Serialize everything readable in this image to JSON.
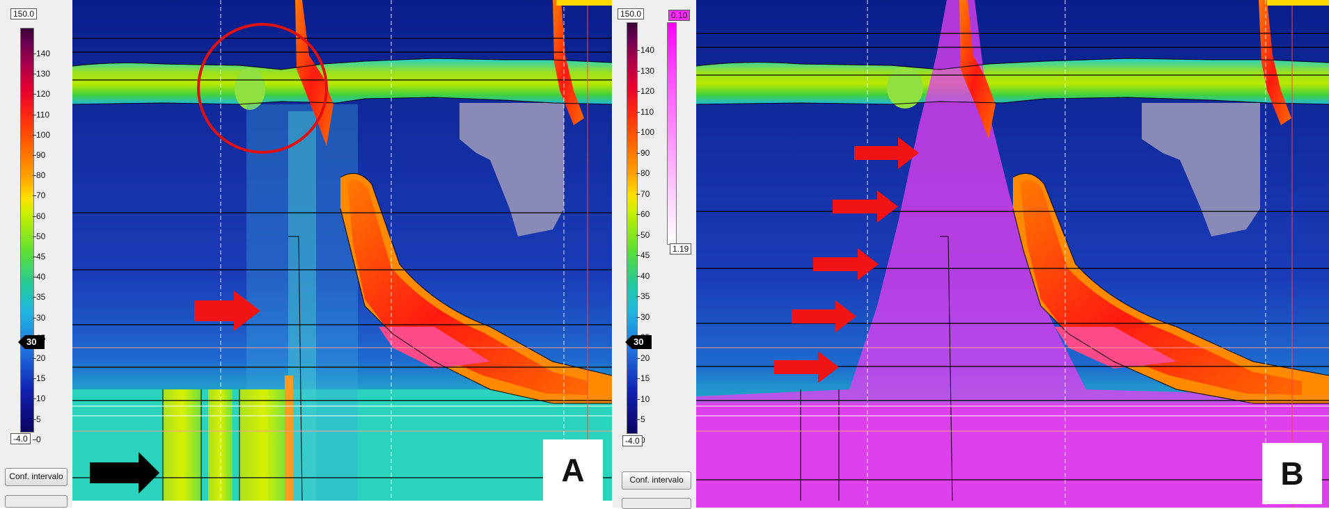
{
  "colorbar": {
    "max_label": "150.0",
    "min_label": "-4.0",
    "ticks": [
      "140",
      "130",
      "120",
      "110",
      "100",
      "90",
      "80",
      "70",
      "60",
      "50",
      "45",
      "40",
      "35",
      "30",
      "25",
      "20",
      "15",
      "10",
      "5",
      "0"
    ],
    "marker_value": "30"
  },
  "overlay_scale": {
    "top_label": "0.10",
    "bottom_label": "1.19"
  },
  "panels": {
    "a": {
      "label": "A",
      "button_label": "Conf. intervalo"
    },
    "b": {
      "label": "B",
      "button_label": "Conf. intervalo"
    }
  }
}
